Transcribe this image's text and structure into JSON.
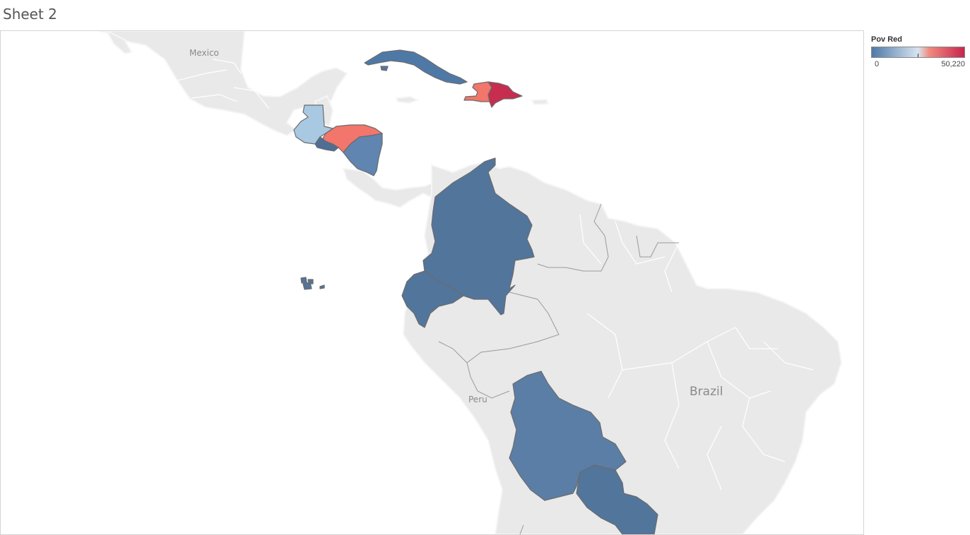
{
  "sheet": {
    "title": "Sheet 2"
  },
  "legend": {
    "title": "Pov Red",
    "min_label": "0",
    "max_label": "50,220",
    "scale": "diverging",
    "colors": {
      "low": "#4e79a7",
      "mid": "#d7e5f0",
      "high": "#c7254e"
    }
  },
  "map": {
    "place_labels": {
      "mexico": "Mexico",
      "brazil": "Brazil",
      "peru": "Peru"
    },
    "colors": {
      "land": "#e9e9e9",
      "border": "#ffffff",
      "halo": "#f6f6f6",
      "highlight_outline": "#6b6b6b"
    },
    "countries": [
      {
        "id": "cuba",
        "fill": "#4e79a7"
      },
      {
        "id": "haiti",
        "fill": "#f2766b"
      },
      {
        "id": "dominican-republic",
        "fill": "#c72d4e"
      },
      {
        "id": "guatemala",
        "fill": "#a9c8e2"
      },
      {
        "id": "honduras",
        "fill": "#f2766b"
      },
      {
        "id": "el-salvador",
        "fill": "#4e6e96"
      },
      {
        "id": "nicaragua",
        "fill": "#5f85b0"
      },
      {
        "id": "colombia",
        "fill": "#52759c"
      },
      {
        "id": "ecuador",
        "fill": "#52759c"
      },
      {
        "id": "galapagos",
        "fill": "#52759c"
      },
      {
        "id": "bolivia",
        "fill": "#5b7ea6"
      },
      {
        "id": "paraguay",
        "fill": "#52759c"
      }
    ]
  }
}
